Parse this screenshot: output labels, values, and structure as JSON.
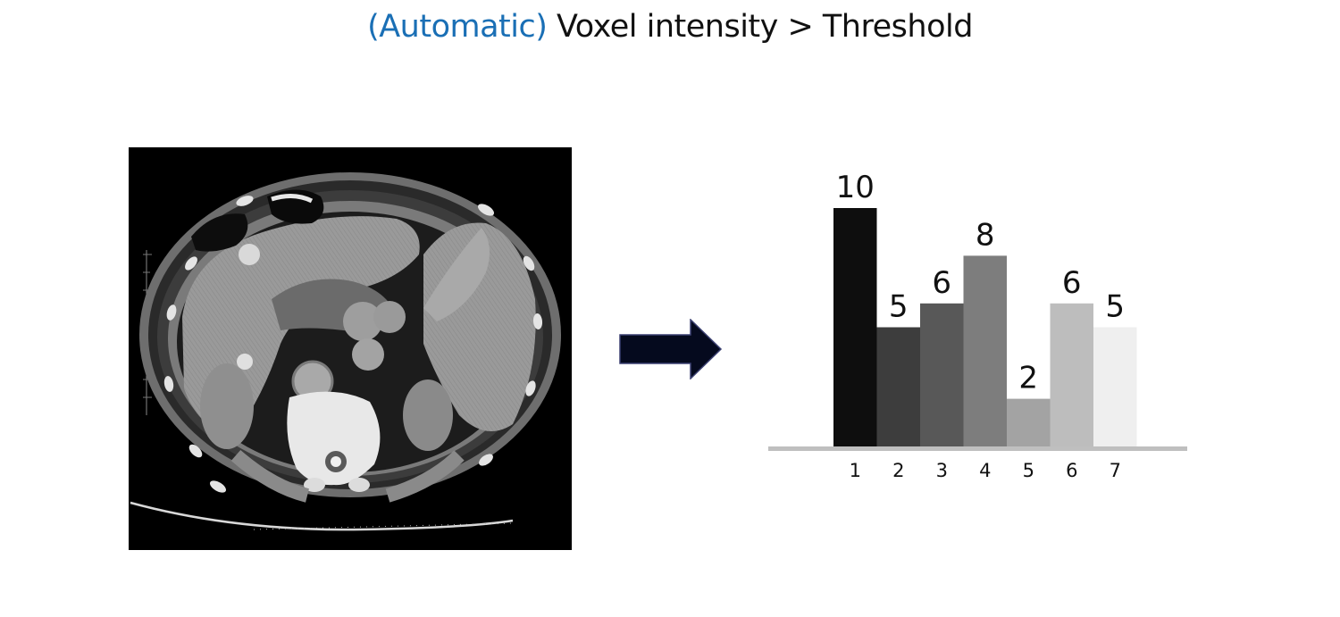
{
  "title": {
    "prefix": "(Automatic)",
    "text": "Voxel intensity > Threshold",
    "prefix_color": "#1a6fb5"
  },
  "image": {
    "icon": "ct-scan-image"
  },
  "arrow": {
    "icon": "right-arrow-icon",
    "color": "#050a1e"
  },
  "chart_data": {
    "type": "bar",
    "categories": [
      "1",
      "2",
      "3",
      "4",
      "5",
      "6",
      "7"
    ],
    "values": [
      10,
      5,
      6,
      8,
      2,
      6,
      5
    ],
    "colors": [
      "#0e0e0e",
      "#3d3d3d",
      "#585858",
      "#7d7d7d",
      "#a3a3a3",
      "#bdbdbd",
      "#efefef"
    ],
    "baseline_color": "#bfbfbf",
    "value_labels": true,
    "ylim": [
      0,
      10
    ],
    "title": "",
    "xlabel": "",
    "ylabel": ""
  }
}
